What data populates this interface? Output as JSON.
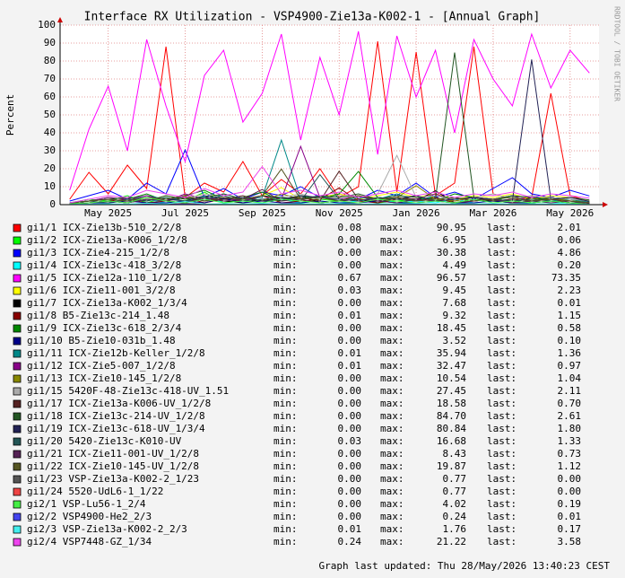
{
  "chart_data": {
    "type": "line",
    "title": "Interface RX Utilization - VSP4900-Zie13a-K002-1 - [Annual Graph]",
    "ylabel": "Percent",
    "watermark": "RRDTOOL / TOBI OETIKER",
    "footer": "Graph last updated: Thu 28/May/2026 13:40:23 CEST",
    "ylim": [
      0,
      100
    ],
    "yticks": [
      0,
      10,
      20,
      30,
      40,
      50,
      60,
      70,
      80,
      90,
      100
    ],
    "grid": true,
    "categories": [
      null,
      null,
      "May 2025",
      null,
      null,
      null,
      "Jul 2025",
      null,
      null,
      null,
      "Sep 2025",
      null,
      null,
      null,
      "Nov 2025",
      null,
      null,
      null,
      "Jan 2026",
      null,
      null,
      null,
      "Mar 2026",
      null,
      null,
      null,
      "May 2026",
      null
    ],
    "stat_labels": {
      "min": "min:",
      "max": "max:",
      "last": "last:"
    },
    "series": [
      {
        "name": "gi1/1 ICX-Zie13b-510_2/2/8",
        "color": "#ff0000",
        "min": "0.08",
        "max": "90.95",
        "last": "2.01",
        "values": [
          3,
          18,
          6,
          22,
          9,
          88,
          4,
          12,
          7,
          24,
          5,
          14,
          6,
          20,
          4,
          10,
          90.95,
          7,
          85,
          5,
          12,
          88,
          6,
          3,
          4,
          62,
          5,
          2.01
        ]
      },
      {
        "name": "gi1/2 ICX-Zie13a-K006_1/2/8",
        "color": "#00ff00",
        "min": "0.00",
        "max": "6.95",
        "last": "0.06",
        "values": [
          1,
          3,
          2,
          5,
          1,
          4,
          2,
          6.95,
          1,
          3,
          2,
          4,
          1,
          3,
          2,
          5,
          1,
          2,
          3,
          4,
          1,
          3,
          2,
          5,
          1,
          2,
          1,
          0.06
        ]
      },
      {
        "name": "gi1/3 ICX-Zie4-215_1/2/8",
        "color": "#0000ff",
        "min": "0.00",
        "max": "30.38",
        "last": "4.86",
        "values": [
          2,
          5,
          8,
          3,
          12,
          6,
          30.38,
          4,
          9,
          3,
          7,
          5,
          10,
          4,
          6,
          3,
          8,
          5,
          12,
          4,
          7,
          3,
          9,
          15,
          6,
          4,
          8,
          4.86
        ]
      },
      {
        "name": "gi1/4 ICX-Zie13c-418_3/2/8",
        "color": "#00ffff",
        "min": "0.00",
        "max": "4.49",
        "last": "0.20",
        "values": [
          0.5,
          1,
          2,
          1,
          3,
          1,
          2,
          4.49,
          1,
          2,
          1,
          3,
          1,
          2,
          1,
          2,
          3,
          1,
          2,
          1,
          3,
          1,
          2,
          1,
          2,
          1,
          1,
          0.2
        ]
      },
      {
        "name": "gi1/5 ICX-Zie12a-110_1/2/8",
        "color": "#ff00ff",
        "min": "0.67",
        "max": "96.57",
        "last": "73.35",
        "values": [
          8,
          42,
          66,
          30,
          92,
          55,
          24,
          72,
          86,
          46,
          62,
          95,
          36,
          82,
          50,
          96.57,
          28,
          94,
          60,
          86,
          40,
          92,
          70,
          55,
          95,
          65,
          86,
          73.35
        ]
      },
      {
        "name": "gi1/6 ICX-Zie11-001_3/2/8",
        "color": "#ffff00",
        "min": "0.03",
        "max": "9.45",
        "last": "2.23",
        "values": [
          1,
          2,
          3,
          4,
          2,
          5,
          3,
          6,
          4,
          3,
          5,
          9.45,
          3,
          4,
          6,
          3,
          5,
          7,
          4,
          6,
          3,
          5,
          4,
          6,
          3,
          5,
          4,
          2.23
        ]
      },
      {
        "name": "gi1/7 ICX-Zie13a-K002_1/3/4",
        "color": "#000000",
        "min": "0.00",
        "max": "7.68",
        "last": "0.01",
        "values": [
          0.5,
          1,
          2,
          1,
          3,
          2,
          1,
          4,
          2,
          1,
          3,
          2,
          5,
          1,
          2,
          3,
          1,
          4,
          2,
          7.68,
          1,
          3,
          2,
          1,
          4,
          2,
          1,
          0.01
        ]
      },
      {
        "name": "gi1/8 B5-Zie13c-214_1.48",
        "color": "#880000",
        "min": "0.01",
        "max": "9.32",
        "last": "1.15",
        "values": [
          0.5,
          1,
          2,
          3,
          1,
          2,
          4,
          1,
          3,
          2,
          5,
          1,
          2,
          3,
          9.32,
          2,
          1,
          3,
          2,
          4,
          1,
          2,
          3,
          1,
          2,
          3,
          1,
          1.15
        ]
      },
      {
        "name": "gi1/9 ICX-Zie13c-618_2/3/4",
        "color": "#008800",
        "min": "0.00",
        "max": "18.45",
        "last": "0.58",
        "values": [
          1,
          2,
          4,
          3,
          6,
          2,
          5,
          8,
          3,
          4,
          7,
          2,
          5,
          3,
          6,
          18.45,
          4,
          3,
          5,
          2,
          6,
          4,
          3,
          5,
          2,
          4,
          3,
          0.58
        ]
      },
      {
        "name": "gi1/10 B5-Zie10-031b_1.48",
        "color": "#000088",
        "min": "0.00",
        "max": "3.52",
        "last": "0.10",
        "values": [
          0.5,
          1,
          1,
          2,
          1,
          1,
          2,
          1,
          3.52,
          1,
          2,
          1,
          1,
          2,
          1,
          1,
          2,
          1,
          1,
          2,
          1,
          1,
          2,
          1,
          1,
          2,
          1,
          0.1
        ]
      },
      {
        "name": "gi1/11 ICX-Zie12b-Keller_1/2/8",
        "color": "#008888",
        "min": "0.01",
        "max": "35.94",
        "last": "1.36",
        "values": [
          1,
          2,
          3,
          2,
          5,
          3,
          4,
          2,
          6,
          3,
          4,
          35.94,
          3,
          5,
          2,
          4,
          3,
          6,
          2,
          5,
          3,
          4,
          2,
          3,
          5,
          2,
          3,
          1.36
        ]
      },
      {
        "name": "gi1/12 ICX-Zie5-007_1/2/8",
        "color": "#880088",
        "min": "0.01",
        "max": "32.47",
        "last": "0.97",
        "values": [
          1,
          2,
          4,
          3,
          5,
          2,
          6,
          3,
          4,
          2,
          5,
          3,
          32.47,
          4,
          3,
          5,
          2,
          4,
          3,
          6,
          2,
          4,
          3,
          5,
          2,
          3,
          2,
          0.97
        ]
      },
      {
        "name": "gi1/13 ICX-Zie10-145_1/2/8",
        "color": "#888800",
        "min": "0.00",
        "max": "10.54",
        "last": "1.04",
        "values": [
          1,
          2,
          3,
          2,
          4,
          3,
          5,
          2,
          3,
          4,
          2,
          6,
          3,
          4,
          2,
          5,
          3,
          4,
          10.54,
          3,
          2,
          4,
          3,
          2,
          3,
          4,
          2,
          1.04
        ]
      },
      {
        "name": "gi1/15 5420F-48-Zie13c-418-UV_1.51",
        "color": "#aaaaaa",
        "min": "0.00",
        "max": "27.45",
        "last": "2.11",
        "values": [
          1,
          2,
          3,
          4,
          2,
          5,
          3,
          6,
          4,
          3,
          5,
          4,
          6,
          3,
          5,
          4,
          6,
          27.45,
          4,
          5,
          3,
          4,
          6,
          3,
          5,
          4,
          3,
          2.11
        ]
      },
      {
        "name": "gi1/17 ICX-Zie13a-K006-UV_1/2/8",
        "color": "#552222",
        "min": "0.00",
        "max": "18.58",
        "last": "0.70",
        "values": [
          0.5,
          1,
          2,
          1,
          3,
          2,
          4,
          2,
          3,
          5,
          2,
          3,
          4,
          2,
          18.58,
          3,
          2,
          4,
          3,
          2,
          3,
          4,
          2,
          3,
          2,
          3,
          2,
          0.7
        ]
      },
      {
        "name": "gi1/18 ICX-Zie13c-214-UV_1/2/8",
        "color": "#225522",
        "min": "0.00",
        "max": "84.70",
        "last": "2.61",
        "values": [
          1,
          2,
          3,
          4,
          2,
          5,
          3,
          4,
          6,
          3,
          5,
          4,
          3,
          5,
          4,
          6,
          3,
          5,
          4,
          3,
          84.7,
          4,
          3,
          5,
          4,
          3,
          4,
          2.61
        ]
      },
      {
        "name": "gi1/19 ICX-Zie13c-618-UV_1/3/4",
        "color": "#222255",
        "min": "0.00",
        "max": "80.84",
        "last": "1.80",
        "values": [
          1,
          2,
          3,
          2,
          4,
          3,
          2,
          5,
          3,
          4,
          2,
          3,
          5,
          4,
          3,
          2,
          4,
          3,
          5,
          2,
          3,
          4,
          3,
          2,
          80.84,
          3,
          4,
          1.8
        ]
      },
      {
        "name": "gi1/20 5420-Zie13c-K010-UV",
        "color": "#225555",
        "min": "0.03",
        "max": "16.68",
        "last": "1.33",
        "values": [
          1,
          2,
          1,
          3,
          2,
          4,
          2,
          3,
          5,
          2,
          3,
          4,
          2,
          16.68,
          3,
          2,
          4,
          3,
          2,
          3,
          4,
          2,
          3,
          2,
          3,
          2,
          1,
          1.33
        ]
      },
      {
        "name": "gi1/21 ICX-Zie11-001-UV_1/2/8",
        "color": "#552255",
        "min": "0.00",
        "max": "8.43",
        "last": "0.73",
        "values": [
          0.5,
          1,
          2,
          1,
          3,
          2,
          1,
          4,
          2,
          3,
          8.43,
          2,
          3,
          1,
          2,
          3,
          2,
          1,
          3,
          2,
          1,
          2,
          3,
          1,
          2,
          1,
          2,
          0.73
        ]
      },
      {
        "name": "gi1/22 ICX-Zie10-145-UV_1/2/8",
        "color": "#555522",
        "min": "0.00",
        "max": "19.87",
        "last": "1.12",
        "values": [
          1,
          2,
          3,
          2,
          4,
          3,
          5,
          2,
          4,
          3,
          5,
          19.87,
          3,
          4,
          2,
          5,
          3,
          4,
          2,
          3,
          4,
          2,
          3,
          4,
          2,
          3,
          2,
          1.12
        ]
      },
      {
        "name": "gi1/23 VSP-Zie13a-K002-2_1/23",
        "color": "#555555",
        "min": "0.00",
        "max": "0.77",
        "last": "0.00",
        "values": [
          0,
          0.1,
          0.2,
          0.1,
          0.3,
          0.2,
          0.77,
          0.1,
          0.2,
          0.1,
          0.3,
          0.2,
          0.1,
          0.2,
          0.3,
          0.1,
          0.2,
          0.1,
          0.3,
          0.2,
          0.1,
          0.2,
          0.1,
          0.3,
          0.2,
          0.1,
          0.1,
          0
        ]
      },
      {
        "name": "gi1/24 5520-UdL6-1_1/22",
        "color": "#ee4444",
        "min": "0.00",
        "max": "0.77",
        "last": "0.00",
        "values": [
          0,
          0.1,
          0.2,
          0.1,
          0.77,
          0.2,
          0.1,
          0.3,
          0.1,
          0.2,
          0.1,
          0.3,
          0.2,
          0.1,
          0.2,
          0.1,
          0.3,
          0.1,
          0.2,
          0.1,
          0.3,
          0.1,
          0.2,
          0.1,
          0.2,
          0.1,
          0.1,
          0
        ]
      },
      {
        "name": "gi2/1 VSP-Lu56-1_2/4",
        "color": "#44ee44",
        "min": "0.00",
        "max": "4.02",
        "last": "0.19",
        "values": [
          0.5,
          1,
          2,
          1,
          4.02,
          2,
          1,
          3,
          1,
          2,
          1,
          3,
          2,
          1,
          2,
          1,
          3,
          2,
          1,
          2,
          1,
          3,
          1,
          2,
          1,
          2,
          1,
          0.19
        ]
      },
      {
        "name": "gi2/2 VSP4900-He2_2/3",
        "color": "#4444ee",
        "min": "0.00",
        "max": "0.24",
        "last": "0.01",
        "values": [
          0,
          0.1,
          0.05,
          0.1,
          0.2,
          0.1,
          0.24,
          0.1,
          0.05,
          0.1,
          0.2,
          0.1,
          0.05,
          0.1,
          0.2,
          0.1,
          0.05,
          0.1,
          0.2,
          0.1,
          0.05,
          0.1,
          0.2,
          0.1,
          0.05,
          0.1,
          0.05,
          0.01
        ]
      },
      {
        "name": "gi2/3 VSP-Zie13a-K002-2_2/3",
        "color": "#44eeee",
        "min": "0.01",
        "max": "1.76",
        "last": "0.17",
        "values": [
          0.1,
          0.3,
          0.5,
          0.3,
          0.8,
          0.4,
          1.76,
          0.3,
          0.5,
          0.4,
          0.7,
          0.3,
          0.5,
          0.4,
          0.6,
          0.3,
          0.5,
          0.4,
          0.7,
          0.3,
          0.5,
          0.4,
          0.6,
          0.3,
          0.5,
          0.4,
          0.3,
          0.17
        ]
      },
      {
        "name": "gi2/4 VSP7448-GZ_1/34",
        "color": "#ee44ee",
        "min": "0.24",
        "max": "21.22",
        "last": "3.58",
        "values": [
          1,
          3,
          5,
          4,
          8,
          6,
          4,
          9,
          5,
          7,
          21.22,
          6,
          8,
          5,
          7,
          4,
          6,
          8,
          5,
          7,
          4,
          6,
          5,
          7,
          4,
          6,
          5,
          3.58
        ]
      }
    ]
  }
}
